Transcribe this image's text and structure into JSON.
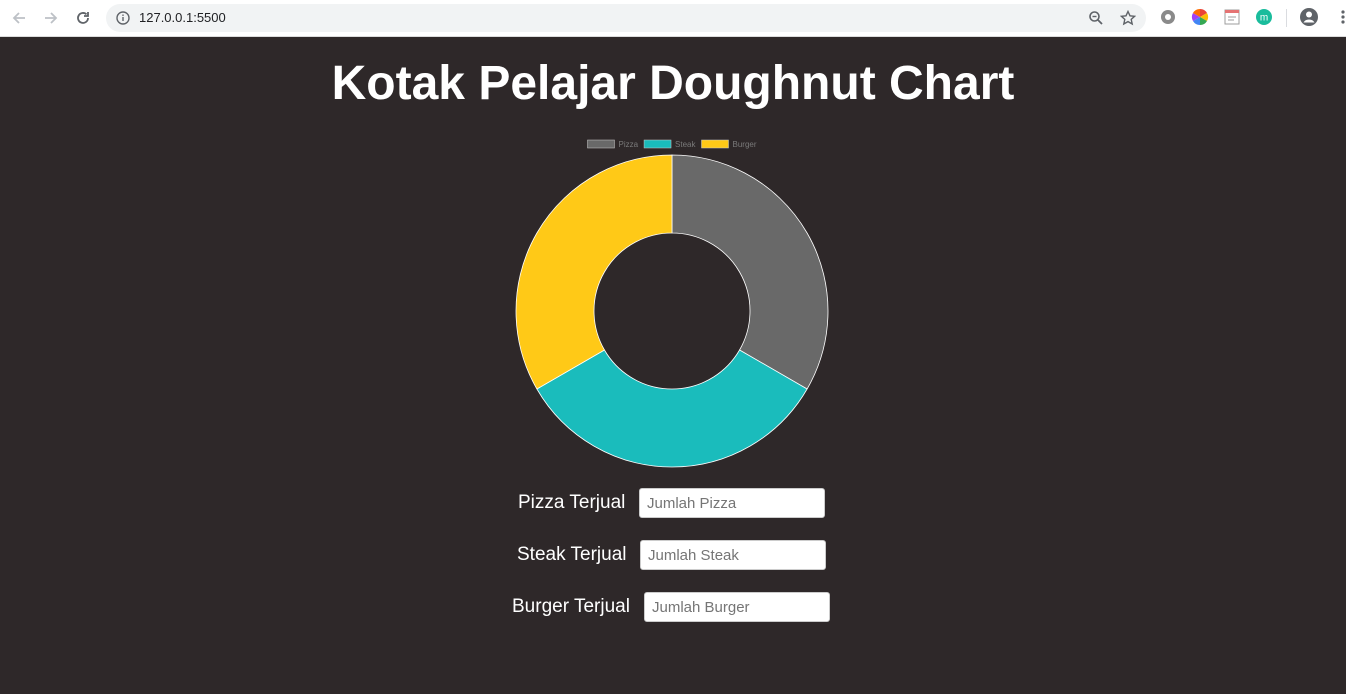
{
  "browser": {
    "url": "127.0.0.1:5500"
  },
  "page": {
    "title": "Kotak Pelajar Doughnut Chart"
  },
  "chart_data": {
    "type": "pie",
    "variant": "doughnut",
    "legend_position": "top",
    "categories": [
      "Pizza",
      "Steak",
      "Burger"
    ],
    "values": [
      1,
      1,
      1
    ],
    "colors": [
      "#696969",
      "#1abcbc",
      "#ffc917"
    ],
    "border_color": "#ffffff"
  },
  "form": {
    "rows": [
      {
        "label": "Pizza Terjual",
        "placeholder": "Jumlah Pizza"
      },
      {
        "label": "Steak Terjual",
        "placeholder": "Jumlah Steak"
      },
      {
        "label": "Burger Terjual",
        "placeholder": "Jumlah Burger"
      }
    ]
  }
}
